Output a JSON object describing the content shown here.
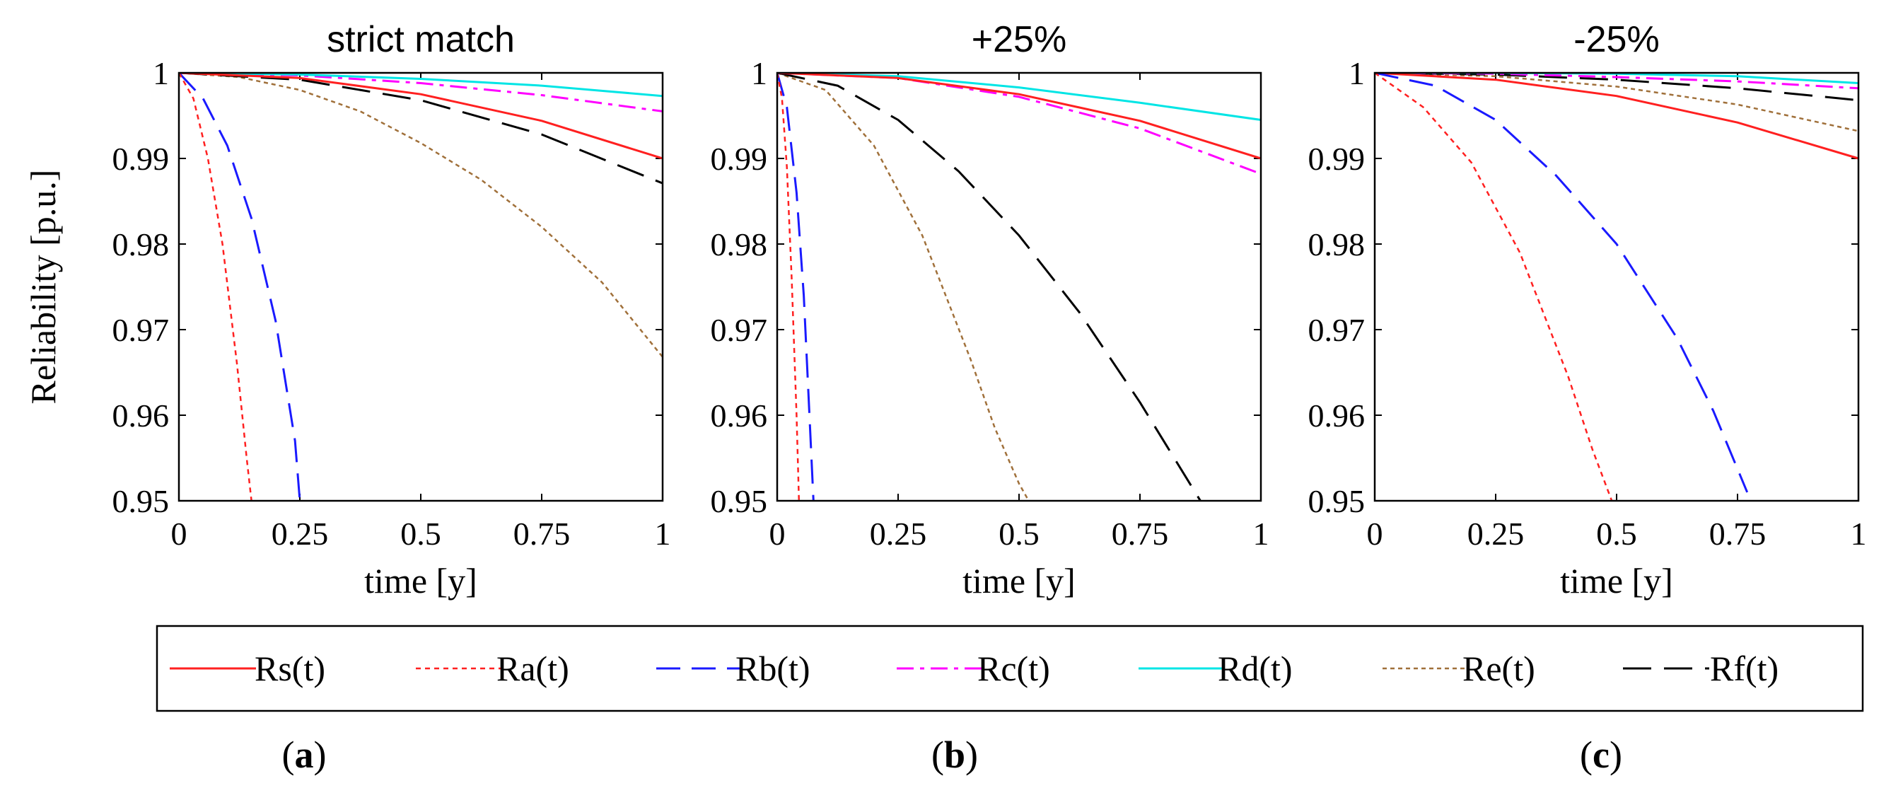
{
  "colors": {
    "Rs": "#ff2020",
    "Ra": "#ff2020",
    "Rb": "#1a1aff",
    "Rc": "#ff00ff",
    "Rd": "#00e5e5",
    "Re": "#a0703a",
    "Rf": "#000000"
  },
  "chart_data": [
    {
      "type": "line",
      "title": "strict match",
      "panel_label": "a",
      "xlabel": "time [y]",
      "ylabel": "Reliability [p.u.]",
      "xlim": [
        0,
        1
      ],
      "ylim": [
        0.95,
        1
      ],
      "xticks": [
        0,
        0.25,
        0.5,
        0.75,
        1
      ],
      "xtick_labels": [
        "0",
        "0.25",
        "0.5",
        "0.75",
        "1"
      ],
      "yticks": [
        0.95,
        0.96,
        0.97,
        0.98,
        0.99,
        1
      ],
      "ytick_labels": [
        "0.95",
        "0.96",
        "0.97",
        "0.98",
        "0.99",
        "1"
      ],
      "series": [
        {
          "name": "Rs(t)",
          "key": "Rs",
          "x": [
            0,
            0.25,
            0.5,
            0.75,
            1
          ],
          "y": [
            1,
            0.9994,
            0.9975,
            0.9944,
            0.99
          ]
        },
        {
          "name": "Ra(t)",
          "key": "Ra",
          "x": [
            0,
            0.03,
            0.06,
            0.09,
            0.12,
            0.14,
            0.15
          ],
          "y": [
            1,
            0.997,
            0.99,
            0.98,
            0.966,
            0.955,
            0.95
          ]
        },
        {
          "name": "Rb(t)",
          "key": "Rb",
          "x": [
            0,
            0.05,
            0.1,
            0.15,
            0.2,
            0.24,
            0.25
          ],
          "y": [
            1,
            0.997,
            0.9915,
            0.983,
            0.971,
            0.957,
            0.95
          ]
        },
        {
          "name": "Rc(t)",
          "key": "Rc",
          "x": [
            0,
            0.25,
            0.5,
            0.75,
            1
          ],
          "y": [
            1,
            0.9997,
            0.9988,
            0.9974,
            0.9955
          ]
        },
        {
          "name": "Rd(t)",
          "key": "Rd",
          "x": [
            0,
            0.25,
            0.5,
            0.75,
            1
          ],
          "y": [
            1,
            0.9998,
            0.9993,
            0.9985,
            0.9973
          ]
        },
        {
          "name": "Re(t)",
          "key": "Re",
          "x": [
            0,
            0.125,
            0.25,
            0.375,
            0.5,
            0.625,
            0.75,
            0.875,
            1
          ],
          "y": [
            1,
            0.9995,
            0.998,
            0.9955,
            0.9918,
            0.9875,
            0.982,
            0.9755,
            0.9668
          ]
        },
        {
          "name": "Rf(t)",
          "key": "Rf",
          "x": [
            0,
            0.25,
            0.5,
            0.75,
            1
          ],
          "y": [
            1,
            0.9992,
            0.9968,
            0.9928,
            0.9871
          ]
        }
      ]
    },
    {
      "type": "line",
      "title": "+25%",
      "panel_label": "b",
      "xlabel": "time [y]",
      "ylabel": "",
      "xlim": [
        0,
        1
      ],
      "ylim": [
        0.95,
        1
      ],
      "xticks": [
        0,
        0.25,
        0.5,
        0.75,
        1
      ],
      "xtick_labels": [
        "0",
        "0.25",
        "0.5",
        "0.75",
        "1"
      ],
      "yticks": [
        0.95,
        0.96,
        0.97,
        0.98,
        0.99,
        1
      ],
      "ytick_labels": [
        "0.95",
        "0.96",
        "0.97",
        "0.98",
        "0.99",
        "1"
      ],
      "series": [
        {
          "name": "Rs(t)",
          "key": "Rs",
          "x": [
            0,
            0.25,
            0.5,
            0.75,
            1
          ],
          "y": [
            1,
            0.9994,
            0.9975,
            0.9944,
            0.99
          ]
        },
        {
          "name": "Ra(t)",
          "key": "Ra",
          "x": [
            0,
            0.01,
            0.02,
            0.03,
            0.04,
            0.045
          ],
          "y": [
            1,
            0.997,
            0.989,
            0.976,
            0.96,
            0.95
          ]
        },
        {
          "name": "Rb(t)",
          "key": "Rb",
          "x": [
            0,
            0.02,
            0.04,
            0.055,
            0.065,
            0.075
          ],
          "y": [
            1,
            0.996,
            0.986,
            0.974,
            0.962,
            0.95
          ]
        },
        {
          "name": "Rc(t)",
          "key": "Rc",
          "x": [
            0,
            0.25,
            0.5,
            0.75,
            1
          ],
          "y": [
            1,
            0.9994,
            0.9972,
            0.9935,
            0.9882
          ]
        },
        {
          "name": "Rd(t)",
          "key": "Rd",
          "x": [
            0,
            0.25,
            0.5,
            0.75,
            1
          ],
          "y": [
            1,
            0.9996,
            0.9983,
            0.9965,
            0.9945
          ]
        },
        {
          "name": "Re(t)",
          "key": "Re",
          "x": [
            0,
            0.1,
            0.2,
            0.3,
            0.4,
            0.45,
            0.5,
            0.52
          ],
          "y": [
            1,
            0.998,
            0.9915,
            0.981,
            0.9665,
            0.9585,
            0.952,
            0.95
          ]
        },
        {
          "name": "Rf(t)",
          "key": "Rf",
          "x": [
            0,
            0.125,
            0.25,
            0.375,
            0.5,
            0.625,
            0.75,
            0.875
          ],
          "y": [
            1,
            0.9985,
            0.9945,
            0.9885,
            0.981,
            0.972,
            0.9615,
            0.95
          ]
        }
      ]
    },
    {
      "type": "line",
      "title": "-25%",
      "panel_label": "c",
      "xlabel": "time [y]",
      "ylabel": "",
      "xlim": [
        0,
        1
      ],
      "ylim": [
        0.95,
        1
      ],
      "xticks": [
        0,
        0.25,
        0.5,
        0.75,
        1
      ],
      "xtick_labels": [
        "0",
        "0.25",
        "0.5",
        "0.75",
        "1"
      ],
      "yticks": [
        0.95,
        0.96,
        0.97,
        0.98,
        0.99,
        1
      ],
      "ytick_labels": [
        "0.95",
        "0.96",
        "0.97",
        "0.98",
        "0.99",
        "1"
      ],
      "series": [
        {
          "name": "Rs(t)",
          "key": "Rs",
          "x": [
            0,
            0.25,
            0.5,
            0.75,
            1
          ],
          "y": [
            1,
            0.9992,
            0.9973,
            0.9942,
            0.99
          ]
        },
        {
          "name": "Ra(t)",
          "key": "Ra",
          "x": [
            0,
            0.1,
            0.2,
            0.3,
            0.4,
            0.45,
            0.49
          ],
          "y": [
            1,
            0.996,
            0.9895,
            0.979,
            0.9645,
            0.956,
            0.95
          ]
        },
        {
          "name": "Rb(t)",
          "key": "Rb",
          "x": [
            0,
            0.125,
            0.25,
            0.375,
            0.5,
            0.625,
            0.7,
            0.77
          ],
          "y": [
            1,
            0.9985,
            0.9945,
            0.988,
            0.98,
            0.969,
            0.9605,
            0.951
          ]
        },
        {
          "name": "Rc(t)",
          "key": "Rc",
          "x": [
            0,
            0.25,
            0.5,
            0.75,
            1
          ],
          "y": [
            1,
            0.9999,
            0.9995,
            0.999,
            0.9982
          ]
        },
        {
          "name": "Rd(t)",
          "key": "Rd",
          "x": [
            0,
            0.25,
            0.5,
            0.75,
            1
          ],
          "y": [
            1,
            1,
            0.9999,
            0.9996,
            0.9988
          ]
        },
        {
          "name": "Re(t)",
          "key": "Re",
          "x": [
            0,
            0.25,
            0.5,
            0.75,
            1
          ],
          "y": [
            1,
            0.9996,
            0.9984,
            0.9963,
            0.9932
          ]
        },
        {
          "name": "Rf(t)",
          "key": "Rf",
          "x": [
            0,
            0.25,
            0.5,
            0.75,
            1
          ],
          "y": [
            1,
            0.9998,
            0.9992,
            0.9982,
            0.9968
          ]
        }
      ]
    }
  ],
  "legend": {
    "placement": "bottom",
    "items": [
      {
        "label": "Rs(t)",
        "key": "Rs"
      },
      {
        "label": "Ra(t)",
        "key": "Ra"
      },
      {
        "label": "Rb(t)",
        "key": "Rb"
      },
      {
        "label": "Rc(t)",
        "key": "Rc"
      },
      {
        "label": "Rd(t)",
        "key": "Rd"
      },
      {
        "label": "Re(t)",
        "key": "Re"
      },
      {
        "label": "Rf(t)",
        "key": "Rf"
      }
    ]
  }
}
